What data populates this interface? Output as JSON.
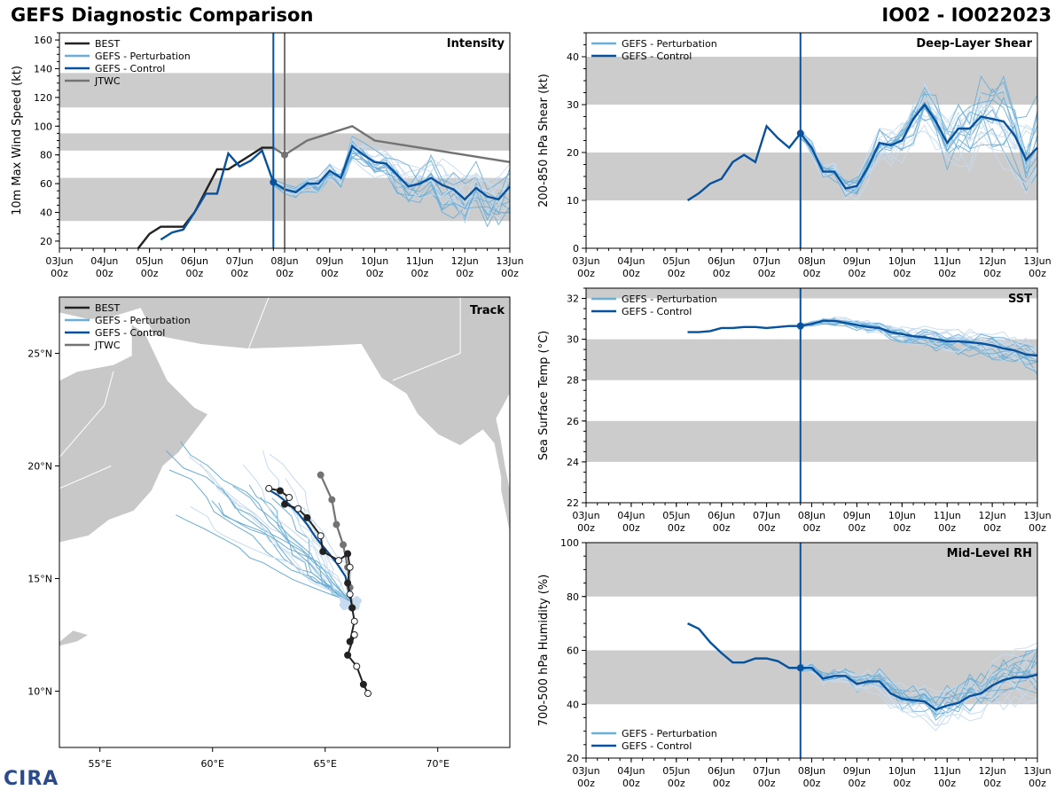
{
  "header": {
    "title": "GEFS Diagnostic Comparison",
    "storm": "IO02 - IO022023"
  },
  "logo": {
    "text": "CIRA"
  },
  "time_ticks": [
    "03Jun\n00z",
    "04Jun\n00z",
    "05Jun\n00z",
    "06Jun\n00z",
    "07Jun\n00z",
    "08Jun\n00z",
    "09Jun\n00z",
    "10Jun\n00z",
    "11Jun\n00z",
    "12Jun\n00z",
    "13Jun\n00z"
  ],
  "colors": {
    "best": "#222222",
    "pert": "#6baed6",
    "pert_light": "#c6dbef",
    "control": "#08519c",
    "jtwc": "#737373",
    "band": "#cccccc",
    "land": "#c8c8c8"
  },
  "chart_data": [
    {
      "id": "intensity",
      "type": "line",
      "title": "Intensity",
      "ylabel": "10m Max Wind Speed (kt)",
      "ylim": [
        15,
        165
      ],
      "yticks": [
        20,
        40,
        60,
        80,
        100,
        120,
        140,
        160
      ],
      "bands": [
        [
          34,
          64
        ],
        [
          83,
          95
        ],
        [
          113,
          137
        ]
      ],
      "init_day": 4.75,
      "jtwc_day": 5.0,
      "legend": [
        "BEST",
        "GEFS - Perturbation",
        "GEFS - Control",
        "JTWC"
      ],
      "series": [
        {
          "name": "BEST",
          "color": "best",
          "x": [
            1.75,
            2.0,
            2.25,
            2.5,
            2.75,
            3.0,
            3.25,
            3.5,
            3.75,
            4.0,
            4.25,
            4.5,
            4.75
          ],
          "y": [
            15,
            25,
            30,
            30,
            30,
            40,
            55,
            70,
            70,
            75,
            80,
            85,
            85
          ]
        },
        {
          "name": "GEFS - Control",
          "color": "control",
          "x": [
            2.25,
            2.5,
            2.75,
            3.0,
            3.25,
            3.5,
            3.75,
            4.0,
            4.25,
            4.5,
            4.75,
            5.0,
            5.25,
            5.5,
            5.75,
            6.0,
            6.25,
            6.5,
            6.75,
            7.0,
            7.25,
            7.5,
            7.75,
            8.0,
            8.25,
            8.5,
            8.75,
            9.0,
            9.25,
            9.5,
            9.75,
            10.0
          ],
          "y": [
            21,
            26,
            28,
            40,
            53,
            53,
            81,
            72,
            76,
            83,
            61,
            56,
            54,
            60,
            60,
            69,
            64,
            86,
            80,
            75,
            74,
            66,
            58,
            60,
            64,
            59,
            56,
            49,
            57,
            51,
            49,
            58
          ]
        },
        {
          "name": "JTWC",
          "color": "jtwc",
          "x": [
            4.75,
            5.0,
            5.5,
            6.5,
            7.0,
            8.0,
            9.0,
            10.0
          ],
          "y": [
            85,
            80,
            90,
            100,
            90,
            85,
            80,
            75
          ]
        }
      ]
    },
    {
      "id": "shear",
      "type": "line",
      "title": "Deep-Layer Shear",
      "ylabel": "200-850 hPa Shear (kt)",
      "ylim": [
        0,
        45
      ],
      "yticks": [
        0,
        10,
        20,
        30,
        40
      ],
      "bands": [
        [
          10,
          20
        ],
        [
          30,
          40
        ]
      ],
      "init_day": 4.75,
      "legend": [
        "GEFS - Perturbation",
        "GEFS - Control"
      ],
      "series": [
        {
          "name": "GEFS - Control",
          "color": "control",
          "x": [
            2.25,
            2.5,
            2.75,
            3.0,
            3.25,
            3.5,
            3.75,
            4.0,
            4.25,
            4.5,
            4.75,
            5.0,
            5.25,
            5.5,
            5.75,
            6.0,
            6.25,
            6.5,
            6.75,
            7.0,
            7.25,
            7.5,
            7.75,
            8.0,
            8.25,
            8.5,
            8.75,
            9.0,
            9.25,
            9.5,
            9.75,
            10.0
          ],
          "y": [
            10,
            11.5,
            13.5,
            14.5,
            18,
            19.5,
            18,
            25.5,
            23,
            21,
            24,
            21,
            16,
            16,
            12.5,
            13,
            17,
            22,
            21.5,
            22.5,
            27,
            30,
            26.5,
            22,
            25,
            25,
            27.5,
            27,
            26.5,
            23.5,
            18.5,
            21
          ]
        }
      ]
    },
    {
      "id": "sst",
      "type": "line",
      "title": "SST",
      "ylabel": "Sea Surface Temp (°C)",
      "ylim": [
        22,
        32.5
      ],
      "yticks": [
        22,
        24,
        26,
        28,
        30,
        32
      ],
      "bands": [
        [
          24,
          26
        ],
        [
          28,
          30
        ],
        [
          32,
          32.5
        ]
      ],
      "init_day": 4.75,
      "legend": [
        "GEFS - Perturbation",
        "GEFS - Control"
      ],
      "series": [
        {
          "name": "GEFS - Control",
          "color": "control",
          "x": [
            2.25,
            2.5,
            2.75,
            3.0,
            3.25,
            3.5,
            3.75,
            4.0,
            4.25,
            4.5,
            4.75,
            5.0,
            5.25,
            5.5,
            5.75,
            6.0,
            6.25,
            6.5,
            6.75,
            7.0,
            7.25,
            7.5,
            7.75,
            8.0,
            8.25,
            8.5,
            8.75,
            9.0,
            9.25,
            9.5,
            9.75,
            10.0
          ],
          "y": [
            30.35,
            30.35,
            30.4,
            30.55,
            30.55,
            30.6,
            30.6,
            30.55,
            30.6,
            30.65,
            30.65,
            30.75,
            30.9,
            30.9,
            30.8,
            30.7,
            30.6,
            30.55,
            30.35,
            30.25,
            30.15,
            30.1,
            30.0,
            29.9,
            29.9,
            29.85,
            29.8,
            29.7,
            29.55,
            29.45,
            29.25,
            29.2
          ]
        }
      ]
    },
    {
      "id": "rh",
      "type": "line",
      "title": "Mid-Level RH",
      "ylabel": "700-500 hPa Humidity (%)",
      "ylim": [
        20,
        100
      ],
      "yticks": [
        20,
        40,
        60,
        80,
        100
      ],
      "bands": [
        [
          40,
          60
        ],
        [
          80,
          100
        ]
      ],
      "init_day": 4.75,
      "legend": [
        "GEFS - Perturbation",
        "GEFS - Control"
      ],
      "series": [
        {
          "name": "GEFS - Control",
          "color": "control",
          "x": [
            2.25,
            2.5,
            2.75,
            3.0,
            3.25,
            3.5,
            3.75,
            4.0,
            4.25,
            4.5,
            4.75,
            5.0,
            5.25,
            5.5,
            5.75,
            6.0,
            6.25,
            6.5,
            6.75,
            7.0,
            7.25,
            7.5,
            7.75,
            8.0,
            8.25,
            8.5,
            8.75,
            9.0,
            9.25,
            9.5,
            9.75,
            10.0
          ],
          "y": [
            70,
            68,
            63,
            59,
            55.5,
            55.5,
            57,
            57,
            56,
            53.5,
            53.5,
            53.5,
            49.5,
            50.5,
            50.5,
            47.5,
            48.5,
            48.5,
            44,
            42,
            41.5,
            41,
            38,
            39.5,
            40.5,
            43,
            44,
            47,
            49,
            50,
            50,
            51
          ]
        }
      ]
    },
    {
      "id": "track",
      "type": "scatter",
      "title": "Track",
      "lon_range": [
        53.2,
        73.2
      ],
      "lat_range": [
        7.5,
        27.5
      ],
      "lon_ticks": [
        55,
        60,
        65,
        70
      ],
      "lon_labels": [
        "55°E",
        "60°E",
        "65°E",
        "70°E"
      ],
      "lat_ticks": [
        10,
        15,
        20,
        25
      ],
      "lat_labels": [
        "10°N",
        "15°N",
        "20°N",
        "25°N"
      ],
      "legend": [
        "BEST",
        "GEFS - Perturbation",
        "GEFS - Control",
        "JTWC"
      ],
      "best_track": [
        [
          66.9,
          9.9
        ],
        [
          66.7,
          10.3
        ],
        [
          66.4,
          11.1
        ],
        [
          66.0,
          11.6
        ],
        [
          66.3,
          12.5
        ],
        [
          66.1,
          12.2
        ],
        [
          66.3,
          13.1
        ],
        [
          66.2,
          13.7
        ],
        [
          66.1,
          14.3
        ],
        [
          66.0,
          14.8
        ],
        [
          66.1,
          15.5
        ],
        [
          66.0,
          16.1
        ],
        [
          65.6,
          15.8
        ],
        [
          64.9,
          16.2
        ],
        [
          64.8,
          16.9
        ],
        [
          64.2,
          17.7
        ],
        [
          63.8,
          18.1
        ],
        [
          63.2,
          18.3
        ],
        [
          63.4,
          18.6
        ],
        [
          63.0,
          18.9
        ],
        [
          62.5,
          19.0
        ]
      ],
      "control_track": [
        [
          66.1,
          14.1
        ],
        [
          66.0,
          14.6
        ],
        [
          65.9,
          15.1
        ],
        [
          65.5,
          15.7
        ],
        [
          65.1,
          16.2
        ],
        [
          64.6,
          16.8
        ],
        [
          64.2,
          17.4
        ],
        [
          63.8,
          17.9
        ],
        [
          63.4,
          18.3
        ],
        [
          62.9,
          18.7
        ],
        [
          62.4,
          19.0
        ]
      ],
      "jtwc_track": [
        [
          66.2,
          13.7
        ],
        [
          66.1,
          14.6
        ],
        [
          66.0,
          15.5
        ],
        [
          65.8,
          16.5
        ],
        [
          65.5,
          17.4
        ],
        [
          65.3,
          18.5
        ],
        [
          64.8,
          19.6
        ]
      ]
    }
  ]
}
